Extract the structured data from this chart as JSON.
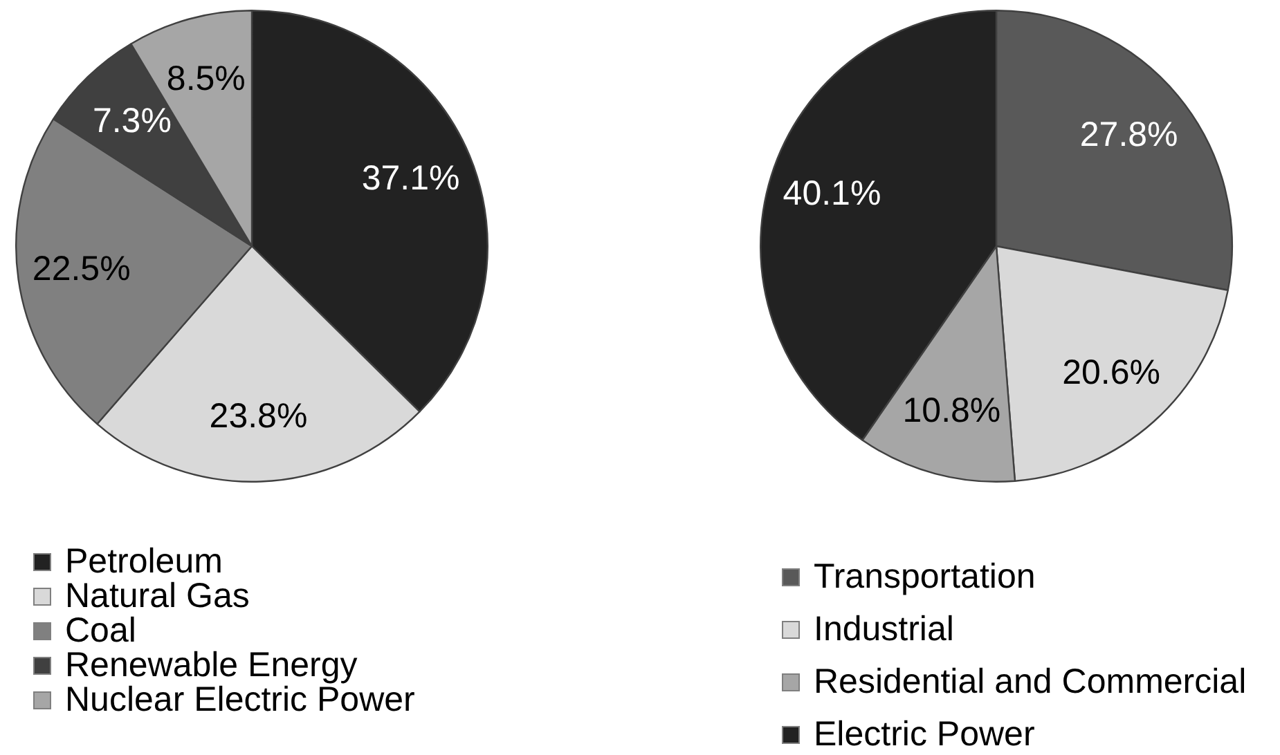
{
  "chart_data": [
    {
      "type": "pie",
      "categories": [
        "Petroleum",
        "Natural Gas",
        "Coal",
        "Renewable Energy",
        "Nuclear Electric Power"
      ],
      "values": [
        37.1,
        23.8,
        22.5,
        7.3,
        8.5
      ],
      "colors": [
        "#222222",
        "#d9d9d9",
        "#808080",
        "#404040",
        "#a6a6a6"
      ],
      "value_labels": [
        "37.1%",
        "23.8%",
        "22.5%",
        "7.3%",
        "8.5%"
      ],
      "legend": "bottom"
    },
    {
      "type": "pie",
      "categories": [
        "Transportation",
        "Industrial",
        "Residential and Commercial",
        "Electric Power"
      ],
      "values": [
        27.8,
        20.6,
        10.8,
        40.1
      ],
      "colors": [
        "#595959",
        "#d9d9d9",
        "#a6a6a6",
        "#222222"
      ],
      "value_labels": [
        "27.8%",
        "20.6%",
        "10.8%",
        "40.1%"
      ],
      "legend": "bottom"
    }
  ]
}
